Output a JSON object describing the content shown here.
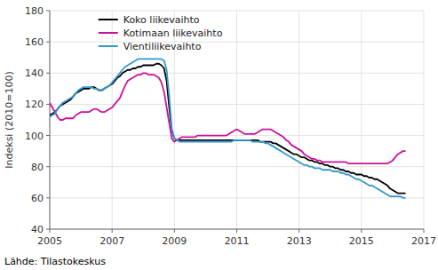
{
  "chart_data": {
    "type": "line",
    "ylabel": "Indeksi (2010=100)",
    "source": "Lähde: Tilastokeskus",
    "xlim": [
      2005.0,
      2017.0
    ],
    "ylim": [
      40,
      180
    ],
    "xticks": [
      2005,
      2007,
      2009,
      2011,
      2013,
      2015,
      2017
    ],
    "yticks": [
      40,
      60,
      80,
      100,
      120,
      140,
      160,
      180
    ],
    "grid": true,
    "legend": "upper left",
    "x": [
      2005.0,
      2005.083,
      2005.167,
      2005.25,
      2005.333,
      2005.417,
      2005.5,
      2005.583,
      2005.667,
      2005.75,
      2005.833,
      2005.917,
      2006.0,
      2006.083,
      2006.167,
      2006.25,
      2006.333,
      2006.417,
      2006.5,
      2006.583,
      2006.667,
      2006.75,
      2006.833,
      2006.917,
      2007.0,
      2007.083,
      2007.167,
      2007.25,
      2007.333,
      2007.417,
      2007.5,
      2007.583,
      2007.667,
      2007.75,
      2007.833,
      2007.917,
      2008.0,
      2008.083,
      2008.167,
      2008.25,
      2008.333,
      2008.417,
      2008.5,
      2008.583,
      2008.667,
      2008.75,
      2008.833,
      2008.917,
      2009.0,
      2009.083,
      2009.167,
      2009.25,
      2009.333,
      2009.417,
      2009.5,
      2009.583,
      2009.667,
      2009.75,
      2009.833,
      2009.917,
      2010.0,
      2010.083,
      2010.167,
      2010.25,
      2010.333,
      2010.417,
      2010.5,
      2010.583,
      2010.667,
      2010.75,
      2010.833,
      2010.917,
      2011.0,
      2011.083,
      2011.167,
      2011.25,
      2011.333,
      2011.417,
      2011.5,
      2011.583,
      2011.667,
      2011.75,
      2011.833,
      2011.917,
      2012.0,
      2012.083,
      2012.167,
      2012.25,
      2012.333,
      2012.417,
      2012.5,
      2012.583,
      2012.667,
      2012.75,
      2012.833,
      2012.917,
      2013.0,
      2013.083,
      2013.167,
      2013.25,
      2013.333,
      2013.417,
      2013.5,
      2013.583,
      2013.667,
      2013.75,
      2013.833,
      2013.917,
      2014.0,
      2014.083,
      2014.167,
      2014.25,
      2014.333,
      2014.417,
      2014.5,
      2014.583,
      2014.667,
      2014.75,
      2014.833,
      2014.917,
      2015.0,
      2015.083,
      2015.167,
      2015.25,
      2015.333,
      2015.417,
      2015.5,
      2015.583,
      2015.667,
      2015.75,
      2015.833,
      2015.917,
      2016.0,
      2016.083,
      2016.167,
      2016.25,
      2016.333,
      2016.417
    ],
    "series": [
      {
        "name": "Koko liikevaihto",
        "color": "#000000",
        "values": [
          113,
          114,
          115,
          117,
          119,
          120,
          121,
          122,
          123,
          125,
          127,
          128,
          129,
          130,
          130,
          130,
          131,
          131,
          130,
          129,
          129,
          130,
          131,
          132,
          133,
          135,
          137,
          138,
          140,
          141,
          142,
          142,
          143,
          143,
          144,
          144,
          145,
          145,
          145,
          145,
          145,
          146,
          146,
          145,
          143,
          135,
          118,
          103,
          98,
          97,
          97,
          97,
          97,
          97,
          97,
          97,
          97,
          97,
          97,
          97,
          97,
          97,
          97,
          97,
          97,
          97,
          97,
          97,
          97,
          97,
          97,
          97,
          97,
          97,
          97,
          97,
          97,
          97,
          97,
          97,
          97,
          96,
          96,
          96,
          96,
          96,
          95,
          95,
          94,
          93,
          92,
          91,
          90,
          89,
          88,
          88,
          87,
          86,
          86,
          85,
          84,
          84,
          83,
          83,
          82,
          82,
          81,
          81,
          80,
          80,
          79,
          79,
          78,
          78,
          77,
          77,
          76,
          76,
          75,
          75,
          75,
          74,
          74,
          73,
          73,
          72,
          72,
          71,
          70,
          69,
          68,
          66,
          65,
          64,
          63,
          63,
          63,
          63
        ]
      },
      {
        "name": "Kotimaan liikevaihto",
        "color": "#cc1199",
        "values": [
          121,
          118,
          115,
          112,
          110,
          110,
          111,
          111,
          111,
          111,
          113,
          114,
          115,
          115,
          115,
          115,
          116,
          117,
          117,
          116,
          115,
          115,
          116,
          117,
          118,
          120,
          122,
          124,
          128,
          132,
          135,
          136,
          137,
          138,
          139,
          139,
          140,
          140,
          139,
          139,
          139,
          138,
          137,
          134,
          128,
          118,
          108,
          98,
          96,
          97,
          98,
          99,
          99,
          99,
          99,
          99,
          99,
          100,
          100,
          100,
          100,
          100,
          100,
          100,
          100,
          100,
          100,
          100,
          100,
          101,
          102,
          103,
          104,
          103,
          102,
          101,
          101,
          101,
          101,
          101,
          102,
          103,
          104,
          104,
          104,
          104,
          103,
          102,
          101,
          100,
          99,
          97,
          96,
          94,
          93,
          92,
          91,
          90,
          88,
          87,
          86,
          85,
          85,
          84,
          84,
          83,
          83,
          83,
          83,
          83,
          83,
          83,
          83,
          83,
          83,
          82,
          82,
          82,
          82,
          82,
          82,
          82,
          82,
          82,
          82,
          82,
          82,
          82,
          82,
          82,
          82,
          83,
          84,
          86,
          88,
          89,
          90,
          90
        ]
      },
      {
        "name": "Vientiliikevaihto",
        "color": "#3399cc",
        "values": [
          112,
          113,
          114,
          117,
          119,
          121,
          122,
          123,
          124,
          125,
          127,
          129,
          130,
          131,
          131,
          131,
          131,
          130,
          130,
          129,
          129,
          130,
          131,
          132,
          134,
          136,
          138,
          140,
          142,
          144,
          145,
          146,
          147,
          148,
          149,
          149,
          149,
          149,
          149,
          149,
          149,
          149,
          149,
          149,
          148,
          142,
          125,
          104,
          98,
          97,
          96,
          96,
          96,
          96,
          96,
          96,
          96,
          96,
          96,
          96,
          96,
          96,
          96,
          96,
          96,
          96,
          96,
          96,
          96,
          96,
          96,
          97,
          97,
          97,
          97,
          97,
          97,
          97,
          96,
          96,
          96,
          96,
          96,
          95,
          95,
          94,
          93,
          92,
          91,
          90,
          89,
          88,
          87,
          86,
          85,
          84,
          83,
          82,
          81,
          81,
          80,
          80,
          79,
          79,
          79,
          78,
          78,
          78,
          78,
          77,
          77,
          77,
          76,
          76,
          75,
          75,
          74,
          73,
          72,
          72,
          71,
          70,
          69,
          68,
          68,
          67,
          66,
          65,
          64,
          63,
          62,
          61,
          61,
          61,
          61,
          61,
          60,
          60
        ]
      }
    ]
  }
}
